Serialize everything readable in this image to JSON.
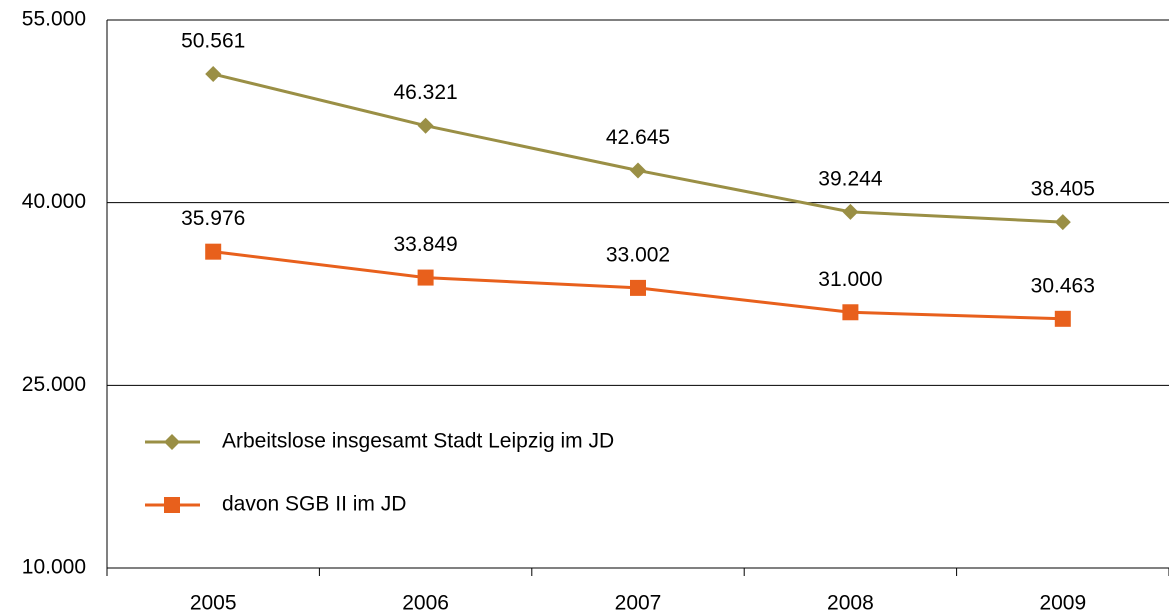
{
  "chart_data": {
    "type": "line",
    "categories": [
      "2005",
      "2006",
      "2007",
      "2008",
      "2009"
    ],
    "series": [
      {
        "name": "Arbeitslose insgesamt Stadt Leipzig im JD",
        "color": "#9a8f45",
        "marker": "diamond",
        "values": [
          50561,
          46321,
          42645,
          39244,
          38405
        ],
        "value_labels": [
          "50.561",
          "46.321",
          "42.645",
          "39.244",
          "38.405"
        ]
      },
      {
        "name": "davon SGB II im JD",
        "color": "#e8601c",
        "marker": "square",
        "values": [
          35976,
          33849,
          33002,
          31000,
          30463
        ],
        "value_labels": [
          "35.976",
          "33.849",
          "33.002",
          "31.000",
          "30.463"
        ]
      }
    ],
    "ylim": [
      10000,
      55000
    ],
    "yticks": [
      {
        "value": 10000,
        "label": "10.000"
      },
      {
        "value": 25000,
        "label": "25.000"
      },
      {
        "value": 40000,
        "label": "40.000"
      },
      {
        "value": 55000,
        "label": "55.000"
      }
    ],
    "grid": true,
    "legend": "lower-left"
  }
}
